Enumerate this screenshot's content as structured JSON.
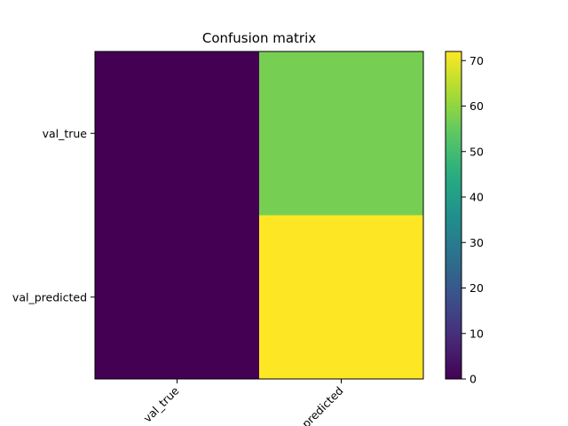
{
  "chart_data": {
    "type": "heatmap",
    "title": "Confusion matrix",
    "x_categories": [
      "val_true",
      "val_predicted"
    ],
    "y_categories": [
      "val_true",
      "val_predicted"
    ],
    "values": [
      [
        0,
        57
      ],
      [
        0,
        72
      ]
    ],
    "colormap": "viridis",
    "colorbar": {
      "vmin": 0,
      "vmax": 72,
      "ticks": [
        0,
        10,
        20,
        30,
        40,
        50,
        60,
        70
      ]
    },
    "xtick_rotation": 45,
    "colors": {
      "low": "#440154",
      "mid": "#6ccd5a",
      "high": "#fde725"
    }
  }
}
